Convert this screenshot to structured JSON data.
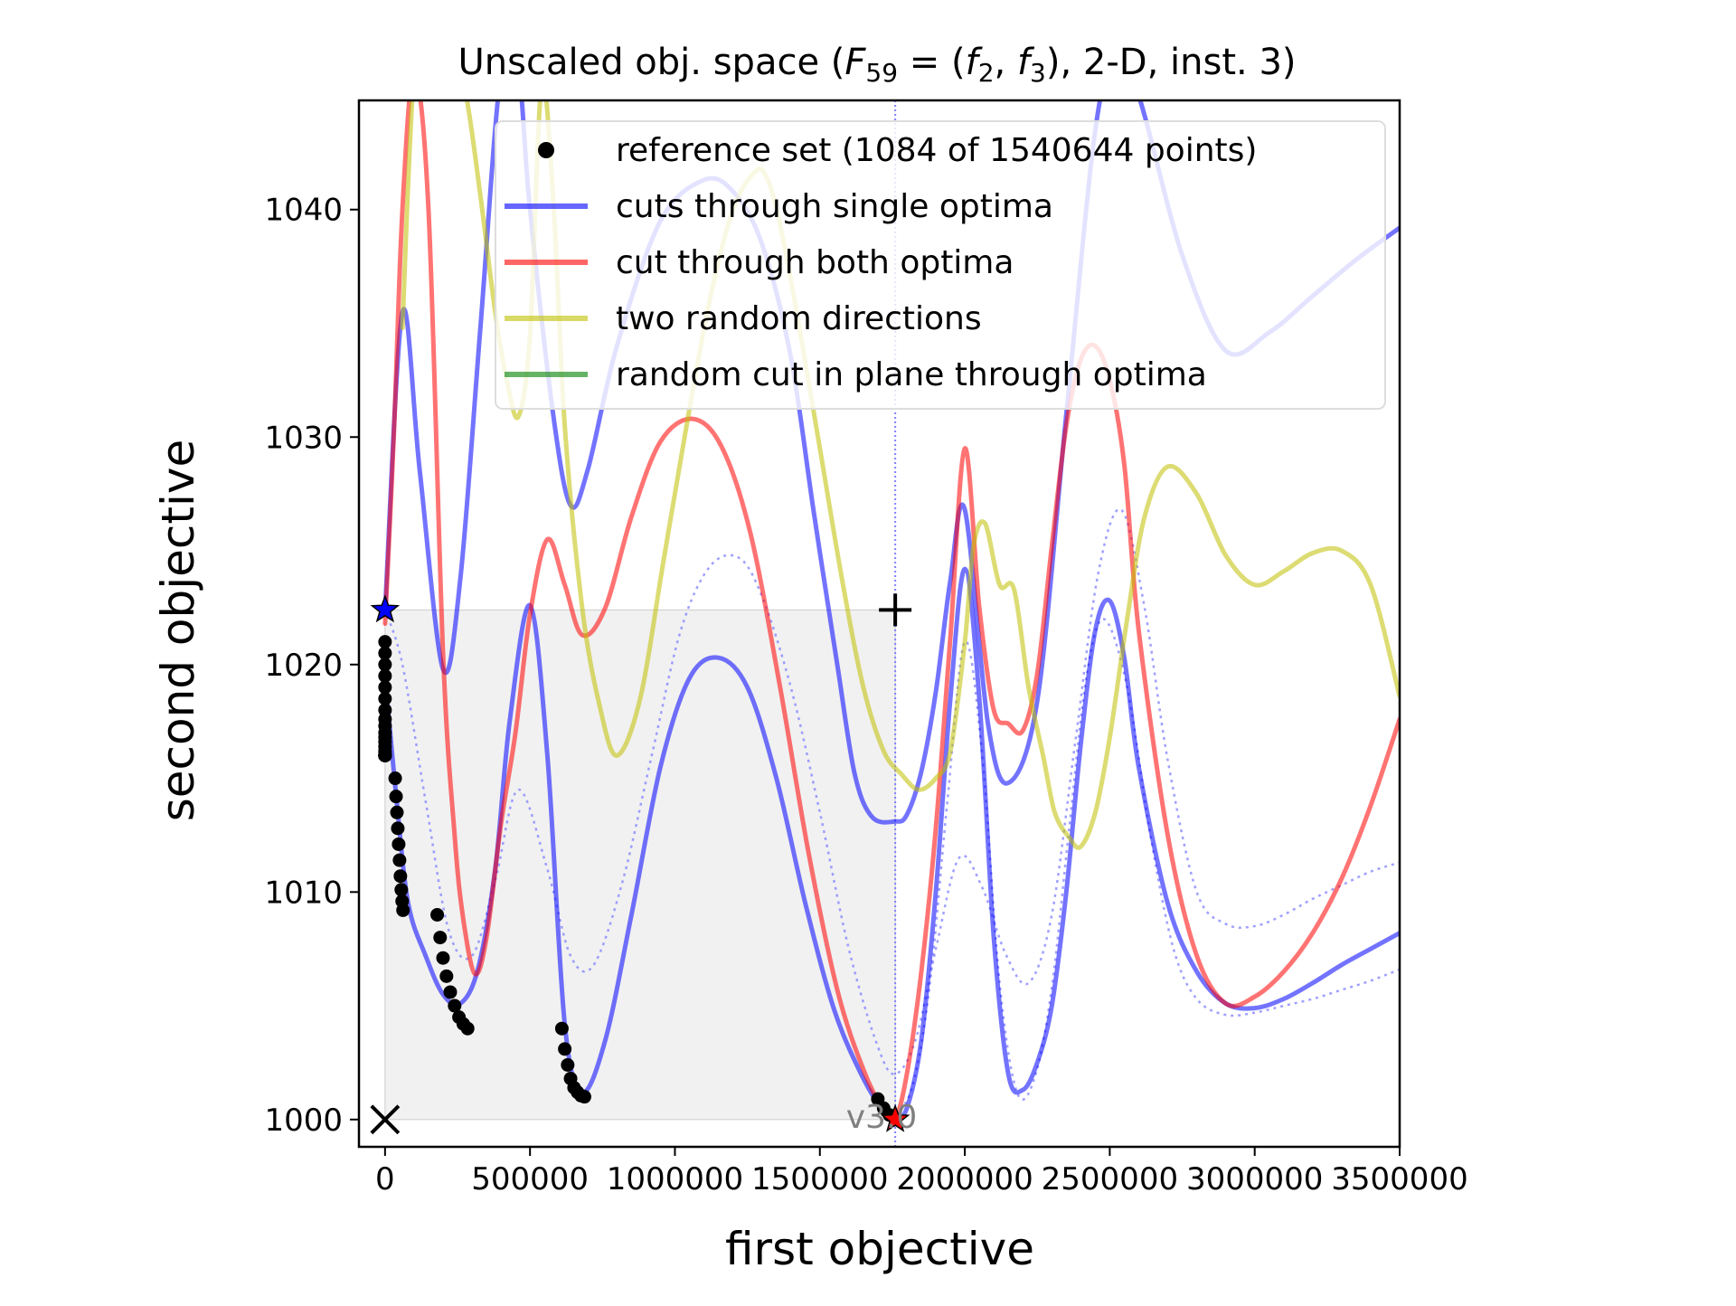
{
  "chart_data": {
    "type": "line",
    "title_main": "Unscaled obj. space (",
    "title_func": "F",
    "title_func_sub": "59",
    "title_eq": " = (",
    "title_f1": "f",
    "title_f1_sub": "2",
    "title_comma": ", ",
    "title_f2": "f",
    "title_f2_sub": "3",
    "title_tail": "), 2-D, inst. 3)",
    "xlabel": "first objective",
    "ylabel": "second objective",
    "xlim": [
      -90000,
      3500000
    ],
    "ylim": [
      998.8,
      1044.8
    ],
    "xticks": [
      0,
      500000,
      1000000,
      1500000,
      2000000,
      2500000,
      3000000,
      3500000
    ],
    "xtick_labels": [
      "0",
      "500000",
      "1000000",
      "1500000",
      "2000000",
      "2500000",
      "3000000",
      "3500000"
    ],
    "yticks": [
      1000,
      1010,
      1020,
      1030,
      1040
    ],
    "ytick_labels": [
      "1000",
      "1010",
      "1020",
      "1030",
      "1040"
    ],
    "version_label": "v3.0",
    "legend_position": "top-right",
    "legend": [
      {
        "label": "reference set (1084 of 1540644 points)",
        "marker": "dot",
        "color": "#000000"
      },
      {
        "label": "cuts through single optima",
        "marker": "line",
        "color": "#0000ff"
      },
      {
        "label": "cut through both optima",
        "marker": "line",
        "color": "#ff0000"
      },
      {
        "label": "two random directions",
        "marker": "line",
        "color": "#bfbf00"
      },
      {
        "label": "random cut in plane through optima",
        "marker": "line",
        "color": "#008000"
      }
    ],
    "ideal_point": [
      0,
      1000
    ],
    "nadir_point": [
      1760000,
      1022.4
    ],
    "series": [
      {
        "name": "cuts through single optima",
        "color": "#0000ff",
        "x": [
          0,
          60000,
          120000,
          200000,
          260000,
          330000,
          400000,
          460000,
          500000,
          580000,
          640000,
          700000,
          800000,
          950000,
          1100000,
          1200000,
          1300000,
          1400000,
          1480000,
          1560000,
          1620000,
          1680000,
          1760000,
          1800000,
          1850000,
          1900000,
          1950000,
          2000000,
          2080000,
          2150000,
          2250000,
          2350000,
          2450000,
          2520000,
          2600000,
          2750000,
          2900000,
          3050000,
          3200000,
          3350000,
          3500000
        ],
        "y": [
          1022.4,
          1035.5,
          1028.5,
          1019.8,
          1023.8,
          1035,
          1046,
          1046,
          1040,
          1031,
          1027,
          1028.6,
          1034,
          1039.5,
          1041.3,
          1040.8,
          1038.5,
          1033.5,
          1026.6,
          1020,
          1015.2,
          1013.3,
          1013.1,
          1013.4,
          1015.3,
          1018.8,
          1023.7,
          1026.8,
          1017.4,
          1014.8,
          1018.4,
          1031,
          1043.5,
          1046.5,
          1045,
          1038,
          1033.8,
          1034.6,
          1036.2,
          1037.8,
          1039.2
        ]
      },
      {
        "name": "cuts through single optima",
        "color": "#0000ff",
        "x": [
          0,
          40000,
          80000,
          140000,
          200000,
          260000,
          320000,
          380000,
          430000,
          500000,
          560000,
          620000,
          680000,
          760000,
          850000,
          950000,
          1050000,
          1150000,
          1250000,
          1350000,
          1450000,
          1550000,
          1650000,
          1720000,
          1760000,
          1800000,
          1850000,
          1900000,
          1950000,
          2000000,
          2050000,
          2100000,
          2150000,
          2200000,
          2250000,
          2300000,
          2350000,
          2400000,
          2450000,
          2500000,
          2550000,
          2600000,
          2700000,
          2800000,
          2900000,
          3000000,
          3100000,
          3200000,
          3300000,
          3400000,
          3500000
        ],
        "y": [
          1019.5,
          1014,
          1009.5,
          1007.2,
          1005.5,
          1005.1,
          1006.6,
          1011,
          1017.5,
          1022.6,
          1016,
          1004.2,
          1001.2,
          1003.5,
          1009,
          1015.5,
          1019.4,
          1020.3,
          1019,
          1015,
          1009.5,
          1004.8,
          1001.8,
          1000.4,
          1000.1,
          1000.5,
          1003.5,
          1010,
          1018.5,
          1024.2,
          1018.5,
          1008,
          1002,
          1001.3,
          1002.5,
          1005,
          1010,
          1016.5,
          1021.5,
          1022.8,
          1020.3,
          1015.5,
          1009.5,
          1006.5,
          1005.1,
          1004.9,
          1005.3,
          1006,
          1006.8,
          1007.5,
          1008.2
        ]
      },
      {
        "name": "cut through both optima",
        "color": "#ff0000",
        "x": [
          0,
          30000,
          60000,
          100000,
          150000,
          200000,
          240000,
          270000,
          310000,
          350000,
          400000,
          450000,
          500000,
          560000,
          620000,
          680000,
          760000,
          850000,
          950000,
          1060000,
          1160000,
          1260000,
          1360000,
          1460000,
          1560000,
          1650000,
          1720000,
          1760000,
          1800000,
          1850000,
          1900000,
          1950000,
          2000000,
          2050000,
          2100000,
          2150000,
          2200000,
          2250000,
          2300000,
          2350000,
          2400000,
          2450000,
          2500000,
          2550000,
          2600000,
          2700000,
          2800000,
          2900000,
          3000000,
          3100000,
          3200000,
          3300000,
          3400000,
          3500000
        ],
        "y": [
          1021.8,
          1030,
          1040,
          1046,
          1040,
          1020.5,
          1012.5,
          1008.8,
          1006.4,
          1008,
          1013,
          1017,
          1022.2,
          1025.5,
          1023.5,
          1021.3,
          1022.5,
          1026.5,
          1029.8,
          1030.8,
          1029.6,
          1025.8,
          1019.2,
          1011.8,
          1005.7,
          1002.2,
          1000.4,
          1000,
          1002,
          1006.5,
          1012.8,
          1021.2,
          1029.5,
          1022.5,
          1018,
          1017.4,
          1017.1,
          1019.6,
          1025.2,
          1030.5,
          1033.4,
          1034,
          1032.5,
          1028.8,
          1021.5,
          1012.5,
          1007.2,
          1005.1,
          1005.4,
          1006.5,
          1008.2,
          1010.6,
          1013.8,
          1017.6
        ]
      },
      {
        "name": "two random directions",
        "color": "#bfbf00",
        "x": [
          60000,
          100000,
          160000,
          220000,
          280000,
          330000,
          380000,
          420000,
          460000,
          500000,
          540000,
          580000,
          620000,
          680000,
          740000,
          800000,
          880000,
          960000,
          1040000,
          1120000,
          1200000,
          1280000,
          1320000,
          1360000,
          1420000,
          1500000,
          1580000,
          1650000,
          1720000,
          1780000,
          1840000,
          1900000,
          1950000,
          2000000,
          2030000,
          2070000,
          2120000,
          2170000,
          2220000,
          2270000,
          2310000,
          2360000,
          2400000,
          2450000,
          2500000,
          2560000,
          2620000,
          2700000,
          2800000,
          2900000,
          3000000,
          3100000,
          3200000,
          3300000,
          3400000,
          3500000
        ],
        "y": [
          1034.8,
          1046,
          1050,
          1048,
          1045,
          1040.5,
          1035.5,
          1032.5,
          1030.9,
          1034.5,
          1045.5,
          1040.5,
          1030.5,
          1022.5,
          1018.2,
          1016,
          1018.5,
          1024.5,
          1030.5,
          1036,
          1040,
          1041.7,
          1041.3,
          1039.5,
          1035.5,
          1029.5,
          1023.5,
          1019,
          1016.2,
          1015.2,
          1014.5,
          1015,
          1016.2,
          1021,
          1025.2,
          1026.2,
          1023.5,
          1023.3,
          1019,
          1016,
          1013.5,
          1012.4,
          1012,
          1013.5,
          1016.8,
          1022,
          1026.5,
          1028.7,
          1027.5,
          1024.8,
          1023.5,
          1024.1,
          1024.9,
          1025,
          1023.5,
          1018.6
        ]
      }
    ],
    "dotted_curves": [
      {
        "x": [
          0,
          60000,
          140000,
          220000,
          300000,
          380000,
          460000,
          560000,
          640000,
          720000,
          820000,
          920000,
          1020000,
          1120000,
          1220000,
          1300000,
          1400000,
          1500000,
          1600000,
          1700000,
          1760000,
          1830000,
          1900000,
          1980000,
          2060000,
          2140000,
          2220000,
          2300000,
          2380000,
          2460000,
          2540000,
          2620000,
          2700000,
          2800000,
          2900000,
          3000000,
          3100000,
          3200000,
          3300000,
          3400000,
          3500000
        ],
        "y": [
          1022.4,
          1020,
          1014,
          1008.3,
          1007.2,
          1010.5,
          1014.5,
          1011,
          1007.2,
          1006.8,
          1010.5,
          1016,
          1021.5,
          1024.3,
          1024.7,
          1023,
          1019,
          1013.5,
          1007.5,
          1003.2,
          1002,
          1003.5,
          1007.5,
          1011.5,
          1010.2,
          1007.3,
          1006,
          1009,
          1016.5,
          1024,
          1026.8,
          1022.5,
          1015.8,
          1010,
          1008.6,
          1008.5,
          1009,
          1009.7,
          1010.3,
          1010.9,
          1011.3
        ]
      },
      {
        "x": [
          1760000,
          1820000,
          1880000,
          1940000,
          2000000,
          2060000,
          2120000,
          2180000,
          2240000,
          2300000,
          2360000,
          2420000,
          2480000,
          2560000,
          2640000,
          2720000,
          2800000,
          2900000,
          3000000,
          3100000,
          3200000,
          3300000,
          3400000,
          3500000
        ],
        "y": [
          1000.2,
          1001.5,
          1006,
          1014,
          1021,
          1016,
          1006,
          1001.2,
          1001.8,
          1005.8,
          1012.8,
          1019.5,
          1022,
          1019,
          1012.5,
          1007.5,
          1005.3,
          1004.6,
          1004.7,
          1005,
          1005.3,
          1005.7,
          1006.1,
          1006.6
        ]
      }
    ],
    "reference_set": [
      {
        "x": [
          0,
          0,
          0,
          0,
          0,
          0,
          0,
          0,
          0,
          0,
          0,
          0,
          0,
          0,
          0,
          0,
          0,
          0,
          0,
          0,
          0,
          0,
          0,
          0,
          0,
          0
        ],
        "y": [
          1021,
          1020.5,
          1020,
          1019.5,
          1019,
          1018.5,
          1018,
          1017.6,
          1017.3,
          1017,
          1016.8,
          1016.6,
          1016.4,
          1016.2,
          1016.1,
          1016,
          1016,
          1016,
          1016,
          1016,
          1016,
          1016,
          1016,
          1016,
          1016,
          1016
        ]
      },
      {
        "x": [
          35000,
          38000,
          41000,
          44000,
          47000,
          50000,
          53000,
          56000,
          59000,
          62000
        ],
        "y": [
          1015,
          1014.2,
          1013.5,
          1012.8,
          1012.1,
          1011.4,
          1010.7,
          1010.1,
          1009.6,
          1009.2
        ]
      },
      {
        "x": [
          180000,
          190000,
          200000,
          212000,
          225000,
          240000,
          255000,
          270000,
          285000
        ],
        "y": [
          1009,
          1008,
          1007.1,
          1006.3,
          1005.6,
          1005,
          1004.5,
          1004.2,
          1004
        ]
      },
      {
        "x": [
          610000,
          620000,
          630000,
          640000,
          652000,
          664000,
          676000,
          688000
        ],
        "y": [
          1004,
          1003.1,
          1002.4,
          1001.8,
          1001.4,
          1001.2,
          1001.05,
          1001
        ]
      },
      {
        "x": [
          1700000,
          1720000,
          1740000,
          1760000
        ],
        "y": [
          1000.9,
          1000.5,
          1000.2,
          1000
        ]
      }
    ],
    "markers": [
      {
        "kind": "x",
        "x": 0,
        "y": 1000,
        "color": "#000000"
      },
      {
        "kind": "plus",
        "x": 1760000,
        "y": 1022.4,
        "color": "#000000"
      },
      {
        "kind": "star",
        "x": 0,
        "y": 1022.4,
        "color": "#0000ff"
      },
      {
        "kind": "star",
        "x": 1760000,
        "y": 1000,
        "color": "#ff0000"
      }
    ]
  }
}
